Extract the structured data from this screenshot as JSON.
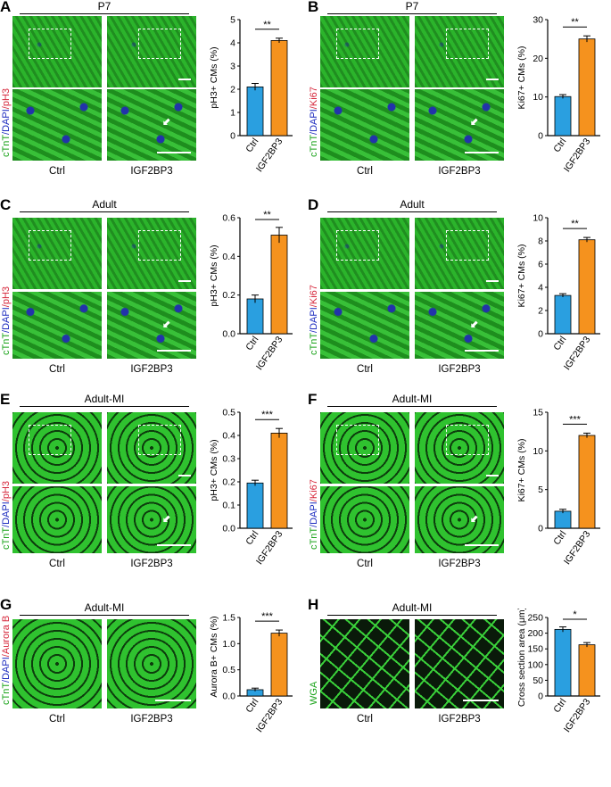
{
  "colors": {
    "ctrl": "#2a9fe0",
    "igf": "#f5921e",
    "green": "#1aa31a",
    "blue": "#1c2bbf",
    "red": "#d6283c"
  },
  "panels": [
    {
      "letter": "A",
      "title": "P7",
      "stain": [
        "cTnT",
        "/DAPI",
        "/pH3"
      ],
      "stain_colors": [
        "green",
        "blue",
        "red"
      ],
      "conditions": [
        "Ctrl",
        "IGF2BP3"
      ]
    },
    {
      "letter": "B",
      "title": "P7",
      "stain": [
        "cTnT",
        "/DAPI",
        "/Ki67"
      ],
      "stain_colors": [
        "green",
        "blue",
        "red"
      ],
      "conditions": [
        "Ctrl",
        "IGF2BP3"
      ]
    },
    {
      "letter": "C",
      "title": "Adult",
      "stain": [
        "cTnT",
        "/DAPI",
        "/pH3"
      ],
      "stain_colors": [
        "green",
        "blue",
        "red"
      ],
      "conditions": [
        "Ctrl",
        "IGF2BP3"
      ]
    },
    {
      "letter": "D",
      "title": "Adult",
      "stain": [
        "cTnT",
        "/DAPI",
        "/Ki67"
      ],
      "stain_colors": [
        "green",
        "blue",
        "red"
      ],
      "conditions": [
        "Ctrl",
        "IGF2BP3"
      ]
    },
    {
      "letter": "E",
      "title": "Adult-MI",
      "stain": [
        "cTnT",
        "/DAPI",
        "/pH3"
      ],
      "stain_colors": [
        "green",
        "blue",
        "red"
      ],
      "conditions": [
        "Ctrl",
        "IGF2BP3"
      ]
    },
    {
      "letter": "F",
      "title": "Adult-MI",
      "stain": [
        "cTnT",
        "/DAPI",
        "/Ki67"
      ],
      "stain_colors": [
        "green",
        "blue",
        "red"
      ],
      "conditions": [
        "Ctrl",
        "IGF2BP3"
      ]
    },
    {
      "letter": "G",
      "title": "Adult-MI",
      "stain": [
        "cTnT",
        "/DAPI",
        "/Aurora B"
      ],
      "stain_colors": [
        "green",
        "blue",
        "red"
      ],
      "conditions": [
        "Ctrl",
        "IGF2BP3"
      ]
    },
    {
      "letter": "H",
      "title": "Adult-MI",
      "stain": [
        "WGA"
      ],
      "stain_colors": [
        "green"
      ],
      "conditions": [
        "Ctrl",
        "IGF2BP3"
      ]
    }
  ],
  "chart_data": [
    {
      "type": "bar",
      "categories": [
        "Ctrl",
        "IGF2BP3"
      ],
      "values": [
        2.1,
        4.1
      ],
      "errors": [
        0.15,
        0.1
      ],
      "ylabel": "pH3+ CMs (%)",
      "ylim": [
        0,
        5
      ],
      "ticks": [
        "0",
        "1",
        "2",
        "3",
        "4",
        "5"
      ],
      "significance": "**"
    },
    {
      "type": "bar",
      "categories": [
        "Ctrl",
        "IGF2BP3"
      ],
      "values": [
        10.1,
        25.0
      ],
      "errors": [
        0.5,
        0.8
      ],
      "ylabel": "Ki67+ CMs (%)",
      "ylim": [
        0,
        30
      ],
      "ticks": [
        "0",
        "10",
        "20",
        "30"
      ],
      "significance": "**"
    },
    {
      "type": "bar",
      "categories": [
        "Ctrl",
        "IGF2BP3"
      ],
      "values": [
        0.18,
        0.51
      ],
      "errors": [
        0.02,
        0.04
      ],
      "ylabel": "pH3+ CMs (%)",
      "ylim": [
        0,
        0.6
      ],
      "ticks": [
        "0.0",
        "0.2",
        "0.4",
        "0.6"
      ],
      "significance": "**"
    },
    {
      "type": "bar",
      "categories": [
        "Ctrl",
        "IGF2BP3"
      ],
      "values": [
        3.3,
        8.1
      ],
      "errors": [
        0.15,
        0.2
      ],
      "ylabel": "Ki67+ CMs (%)",
      "ylim": [
        0,
        10
      ],
      "ticks": [
        "0",
        "2",
        "4",
        "6",
        "8",
        "10"
      ],
      "significance": "**"
    },
    {
      "type": "bar",
      "categories": [
        "Ctrl",
        "IGF2BP3"
      ],
      "values": [
        0.195,
        0.41
      ],
      "errors": [
        0.012,
        0.02
      ],
      "ylabel": "pH3+ CMs (%)",
      "ylim": [
        0,
        0.5
      ],
      "ticks": [
        "0.0",
        "0.1",
        "0.2",
        "0.3",
        "0.4",
        "0.5"
      ],
      "significance": "***"
    },
    {
      "type": "bar",
      "categories": [
        "Ctrl",
        "IGF2BP3"
      ],
      "values": [
        2.2,
        12.0
      ],
      "errors": [
        0.25,
        0.3
      ],
      "ylabel": "Ki67+ CMs (%)",
      "ylim": [
        0,
        15
      ],
      "ticks": [
        "0",
        "5",
        "10",
        "15"
      ],
      "significance": "***"
    },
    {
      "type": "bar",
      "categories": [
        "Ctrl",
        "IGF2BP3"
      ],
      "values": [
        0.12,
        1.2
      ],
      "errors": [
        0.03,
        0.06
      ],
      "ylabel": "Aurora B+ CMs (%)",
      "ylim": [
        0,
        1.5
      ],
      "ticks": [
        "0.0",
        "0.5",
        "1.0",
        "1.5"
      ],
      "significance": "***"
    },
    {
      "type": "bar",
      "categories": [
        "Ctrl",
        "IGF2BP3"
      ],
      "values": [
        212,
        163
      ],
      "errors": [
        8,
        7
      ],
      "ylabel": "Cross section area (μm)",
      "ylim": [
        0,
        250
      ],
      "ticks": [
        "0",
        "50",
        "100",
        "150",
        "200",
        "250"
      ],
      "significance": "*"
    }
  ]
}
